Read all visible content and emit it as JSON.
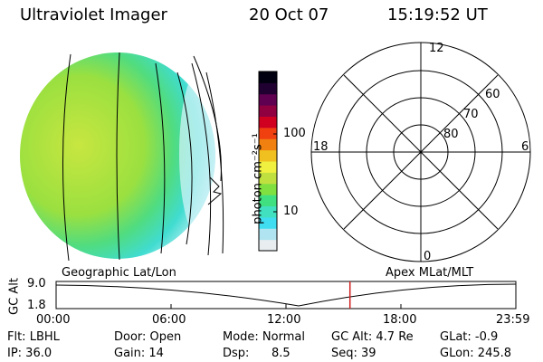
{
  "header": {
    "title": "Ultraviolet Imager",
    "date": "20 Oct 07",
    "time": "15:19:52 UT"
  },
  "colorbar": {
    "label": "photon cm⁻²s⁻¹",
    "ticks": [
      "100",
      "10"
    ],
    "colors": [
      "#e8eef0",
      "#b0e4f0",
      "#40dcf0",
      "#40e0c0",
      "#40e080",
      "#80e040",
      "#c0e040",
      "#f0f040",
      "#f0c020",
      "#f08010",
      "#f04010",
      "#d00020",
      "#900040",
      "#600050",
      "#200030",
      "#000010"
    ]
  },
  "polar_plot": {
    "mlt_labels": {
      "top": "12",
      "right": "6",
      "bottom": "0",
      "left": "18"
    },
    "lat_labels": [
      "60",
      "70",
      "80"
    ]
  },
  "labels": {
    "left_projection": "Geographic Lat/Lon",
    "right_projection": "Apex MLat/MLT"
  },
  "altitude_plot": {
    "ylabel": "GC Alt",
    "yticks": [
      "9.0",
      "1.8"
    ],
    "xticks": [
      "00:00",
      "06:00",
      "12:00",
      "18:00",
      "23:59"
    ],
    "marker_time": "15:19:52",
    "marker_color": "#d02020"
  },
  "status": {
    "flt": "Flt: LBHL",
    "door": "Door: Open",
    "mode": "Mode: Normal",
    "gc_alt": "GC Alt: 4.7 Re",
    "glat": "GLat:  -0.9",
    "ip": "IP: 36.0",
    "gain": "Gain: 14",
    "dsp_label": "Dsp:",
    "dsp_value": "8.5",
    "seq": "Seq: 39",
    "glon": "GLon: 245.8"
  }
}
